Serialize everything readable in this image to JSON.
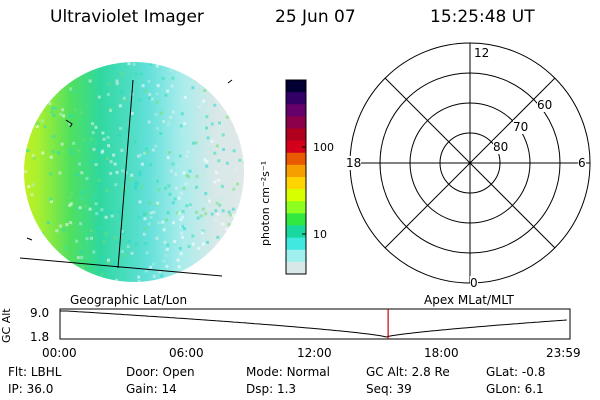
{
  "header": {
    "instrument": "Ultraviolet Imager",
    "date": "25 Jun 07",
    "time": "15:25:48 UT"
  },
  "colorbar": {
    "label": "photon cm⁻²s⁻¹",
    "ticks": [
      "100",
      "10"
    ],
    "colors": [
      "#000033",
      "#330066",
      "#66006a",
      "#8b0048",
      "#b0001e",
      "#d4001a",
      "#e85a00",
      "#f5a000",
      "#ffd400",
      "#d8ff00",
      "#8cff20",
      "#30e840",
      "#18d8a0",
      "#40e8e0",
      "#a0f0f0",
      "#d8e8e8"
    ]
  },
  "polar_plot": {
    "mlt_labels": [
      "12",
      "6",
      "0",
      "18"
    ],
    "lat_labels": [
      "60",
      "70",
      "80"
    ]
  },
  "captions": {
    "left": "Geographic Lat/Lon",
    "right": "Apex MLat/MLT"
  },
  "altitude_plot": {
    "ylabel": "GC Alt",
    "y_ticks": [
      "9.0",
      "1.8"
    ],
    "x_ticks": [
      "00:00",
      "06:00",
      "12:00",
      "18:00",
      "23:59"
    ],
    "marker_time": "15:25:48",
    "marker_color": "#cc0000"
  },
  "info": {
    "row1": [
      {
        "label": "Flt:",
        "value": "LBHL"
      },
      {
        "label": "Door:",
        "value": "Open"
      },
      {
        "label": "Mode:",
        "value": "Normal"
      },
      {
        "label": "GC Alt:",
        "value": "2.8 Re"
      },
      {
        "label": "GLat:",
        "value": "-0.8"
      }
    ],
    "row2": [
      {
        "label": "IP:",
        "value": "36.0"
      },
      {
        "label": "Gain:",
        "value": "14"
      },
      {
        "label": "Dsp:",
        "value": "1.3"
      },
      {
        "label": "Seq:",
        "value": "39"
      },
      {
        "label": "GLon:",
        "value": "6.1"
      }
    ]
  }
}
